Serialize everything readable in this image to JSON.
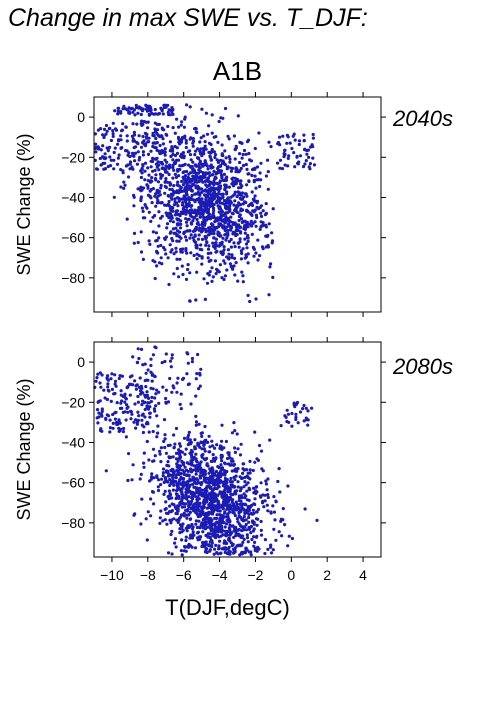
{
  "title": "Change in max SWE vs. T_DJF:",
  "scenario": "A1B",
  "colors": {
    "points": "#1c1cb4",
    "period_label": "#1c1cb4",
    "axes": "#000000"
  },
  "chart_data": [
    {
      "type": "scatter",
      "panel": "2040s",
      "ylabel": "SWE Change (%)",
      "xlabel": "",
      "xlim": [
        -11,
        5
      ],
      "ylim": [
        -97,
        10
      ],
      "yticks": [
        0,
        -20,
        -40,
        -60,
        -80
      ],
      "xticks": [
        -10,
        -8,
        -6,
        -4,
        -2,
        0,
        2,
        4
      ],
      "xticklabels_visible": false,
      "grid": false,
      "cloud": {
        "n_points": 1700,
        "t_range": [
          -11,
          1.5
        ],
        "y_range": [
          -92,
          7
        ],
        "trend_center": [
          -6,
          -40
        ],
        "description_points": [
          [
            -10.8,
            -5
          ],
          [
            -9,
            4
          ],
          [
            -8,
            3
          ],
          [
            -7,
            -10
          ],
          [
            -6,
            -40
          ],
          [
            -5,
            -45
          ],
          [
            -4,
            -50
          ],
          [
            -3,
            -70
          ],
          [
            -2,
            -80
          ],
          [
            -1,
            -15
          ],
          [
            0,
            -25
          ],
          [
            1,
            -10
          ]
        ]
      }
    },
    {
      "type": "scatter",
      "panel": "2080s",
      "ylabel": "SWE Change (%)",
      "xlabel": "T(DJF,degC)",
      "xlim": [
        -11,
        5
      ],
      "ylim": [
        -97,
        10
      ],
      "yticks": [
        0,
        -20,
        -40,
        -60,
        -80
      ],
      "xticks": [
        -10,
        -8,
        -6,
        -4,
        -2,
        0,
        2,
        4
      ],
      "xticklabels_visible": true,
      "grid": false,
      "cloud": {
        "n_points": 1700,
        "t_range": [
          -11,
          1.5
        ],
        "y_range": [
          -96,
          8
        ],
        "trend_center": [
          -5,
          -70
        ],
        "description_points": [
          [
            -10.8,
            -10
          ],
          [
            -9,
            8
          ],
          [
            -8,
            -30
          ],
          [
            -7,
            -50
          ],
          [
            -6,
            -60
          ],
          [
            -5,
            -75
          ],
          [
            -4,
            -80
          ],
          [
            -3,
            -85
          ],
          [
            -2,
            -88
          ],
          [
            0,
            -95
          ],
          [
            1,
            -25
          ]
        ]
      }
    }
  ],
  "tick_labels": {
    "y": [
      "0",
      "−20",
      "−40",
      "−60",
      "−80"
    ],
    "x": [
      "−10",
      "−8",
      "−6",
      "−4",
      "−2",
      "0",
      "2",
      "4"
    ]
  }
}
